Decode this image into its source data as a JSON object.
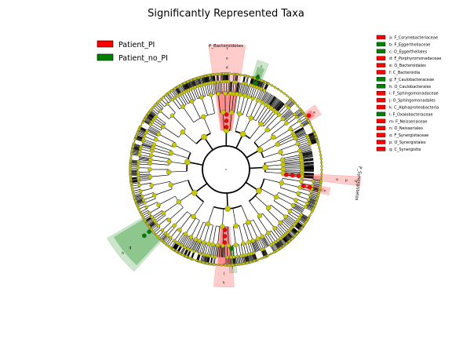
{
  "chart_data": {
    "type": "cladogram",
    "title": "Significantly Represented Taxa",
    "legend": [
      {
        "name": "Patient_PI",
        "color": "#ff0000"
      },
      {
        "name": "Patient_no_PI",
        "color": "#008000"
      }
    ],
    "colors": {
      "enriched_PI": "#ff0000",
      "enriched_no_PI": "#008000",
      "node_default": "#c8c800",
      "edge": "#000000"
    },
    "key": [
      {
        "letter": "a",
        "name": "F_Corynebacteriaceae",
        "group": "Patient_PI"
      },
      {
        "letter": "b",
        "name": "F_Eggerthellaceae",
        "group": "Patient_no_PI"
      },
      {
        "letter": "c",
        "name": "O_Eggerthellales",
        "group": "Patient_no_PI"
      },
      {
        "letter": "d",
        "name": "F_Porphyromonadaceae",
        "group": "Patient_PI"
      },
      {
        "letter": "e",
        "name": "O_Bacteroidales",
        "group": "Patient_PI"
      },
      {
        "letter": "f",
        "name": "C_Bacteroidia",
        "group": "Patient_PI"
      },
      {
        "letter": "g",
        "name": "F_Caulobacteraceae",
        "group": "Patient_no_PI"
      },
      {
        "letter": "h",
        "name": "O_Caulobacterales",
        "group": "Patient_no_PI"
      },
      {
        "letter": "i",
        "name": "F_Sphingomonadaceae",
        "group": "Patient_PI"
      },
      {
        "letter": "j",
        "name": "O_Sphingomonadales",
        "group": "Patient_PI"
      },
      {
        "letter": "k",
        "name": "C_Alphaproteobacteria",
        "group": "Patient_PI"
      },
      {
        "letter": "l",
        "name": "F_Oxalobacteraceae",
        "group": "Patient_no_PI"
      },
      {
        "letter": "m",
        "name": "F_Neisseriaceae",
        "group": "Patient_PI"
      },
      {
        "letter": "n",
        "name": "O_Neisseriales",
        "group": "Patient_PI"
      },
      {
        "letter": "o",
        "name": "F_Synergistaceae",
        "group": "Patient_PI"
      },
      {
        "letter": "p",
        "name": "O_Synergistales",
        "group": "Patient_PI"
      },
      {
        "letter": "q",
        "name": "C_Synergistia",
        "group": "Patient_PI"
      }
    ],
    "clade_labels": [
      {
        "text": "P_Bacteroidetes",
        "group": "Patient_PI"
      },
      {
        "text": "P_Synergistetes",
        "group": "Patient_PI"
      }
    ],
    "highlighted_clades": [
      {
        "letters": [
          "f",
          "e",
          "d"
        ],
        "group": "Patient_PI"
      },
      {
        "letters": [
          "c",
          "b"
        ],
        "group": "Patient_no_PI"
      },
      {
        "letters": [
          "a"
        ],
        "group": "Patient_PI"
      },
      {
        "letters": [
          "q",
          "p",
          "o"
        ],
        "group": "Patient_PI"
      },
      {
        "letters": [
          "n",
          "m"
        ],
        "group": "Patient_PI"
      },
      {
        "letters": [
          "l"
        ],
        "group": "Patient_no_PI"
      },
      {
        "letters": [
          "k",
          "j",
          "i"
        ],
        "group": "Patient_PI"
      },
      {
        "letters": [
          "h",
          "g"
        ],
        "group": "Patient_no_PI"
      }
    ]
  }
}
